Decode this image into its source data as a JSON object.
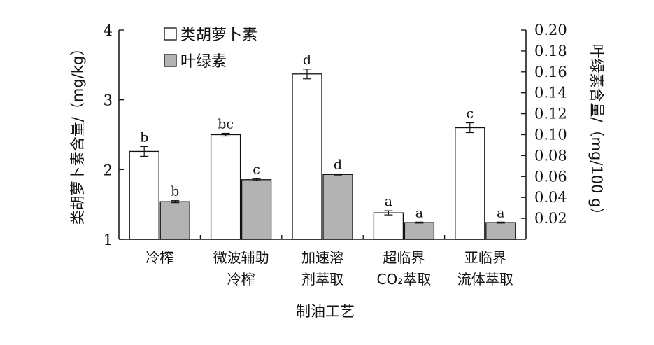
{
  "chart_data": {
    "type": "bar",
    "xlabel": "制油工艺",
    "ylabel": "类胡萝卜素含量/（mg/kg）",
    "y2label": "叶绿素含量/（mg/100 g）",
    "ylim": [
      1,
      4
    ],
    "y2lim": [
      0.0,
      0.2
    ],
    "yticks": [
      "1",
      "2",
      "3",
      "4"
    ],
    "y2ticks": [
      "0.02",
      "0.04",
      "0.06",
      "0.08",
      "0.10",
      "0.12",
      "0.14",
      "0.16",
      "0.18",
      "0.20"
    ],
    "legend_position": "top-left",
    "categories": [
      [
        "冷榨"
      ],
      [
        "微波辅助",
        "冷榨"
      ],
      [
        "加速溶",
        "剂萃取"
      ],
      [
        "超临界",
        "CO₂萃取"
      ],
      [
        "亚临界",
        "流体萃取"
      ]
    ],
    "series": [
      {
        "name": "类胡萝卜素",
        "axis": "left",
        "color": "#ffffff",
        "values": [
          2.26,
          2.5,
          3.37,
          1.38,
          2.6
        ],
        "errors": [
          0.07,
          0.02,
          0.07,
          0.03,
          0.07
        ],
        "labels": [
          "b",
          "bc",
          "d",
          "a",
          "c"
        ]
      },
      {
        "name": "叶绿素",
        "axis": "right",
        "color": "#b3b3b3",
        "values": [
          0.036,
          0.057,
          0.062,
          0.016,
          0.016
        ],
        "errors": [
          0.001,
          0.001,
          0.0005,
          0.0005,
          0.0005
        ],
        "labels": [
          "b",
          "c",
          "d",
          "a",
          "a"
        ]
      }
    ]
  }
}
